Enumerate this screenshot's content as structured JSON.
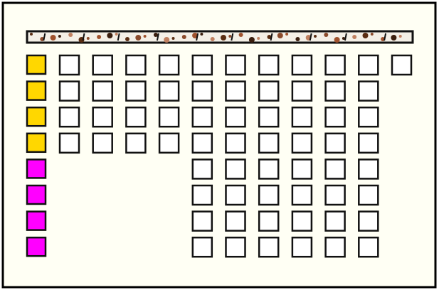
{
  "grid": {
    "rows": [
      {
        "marker_color": "#ffd700",
        "cells": [
          true,
          true,
          true,
          true,
          true,
          true,
          true,
          true,
          true,
          true,
          true
        ]
      },
      {
        "marker_color": "#ffd700",
        "cells": [
          true,
          true,
          true,
          true,
          true,
          true,
          true,
          true,
          true,
          true,
          false
        ]
      },
      {
        "marker_color": "#ffd700",
        "cells": [
          true,
          true,
          true,
          true,
          true,
          true,
          true,
          true,
          true,
          true,
          false
        ]
      },
      {
        "marker_color": "#ffd700",
        "cells": [
          true,
          true,
          true,
          true,
          true,
          true,
          true,
          true,
          true,
          true,
          false
        ]
      },
      {
        "marker_color": "#ff00ff",
        "cells": [
          false,
          false,
          false,
          false,
          true,
          true,
          true,
          true,
          true,
          true,
          false
        ]
      },
      {
        "marker_color": "#ff00ff",
        "cells": [
          false,
          false,
          false,
          false,
          true,
          true,
          true,
          true,
          true,
          true,
          false
        ]
      },
      {
        "marker_color": "#ff00ff",
        "cells": [
          false,
          false,
          false,
          false,
          true,
          true,
          true,
          true,
          true,
          true,
          false
        ]
      },
      {
        "marker_color": "#ff00ff",
        "cells": [
          false,
          false,
          false,
          false,
          true,
          true,
          true,
          true,
          true,
          true,
          false
        ]
      }
    ]
  }
}
